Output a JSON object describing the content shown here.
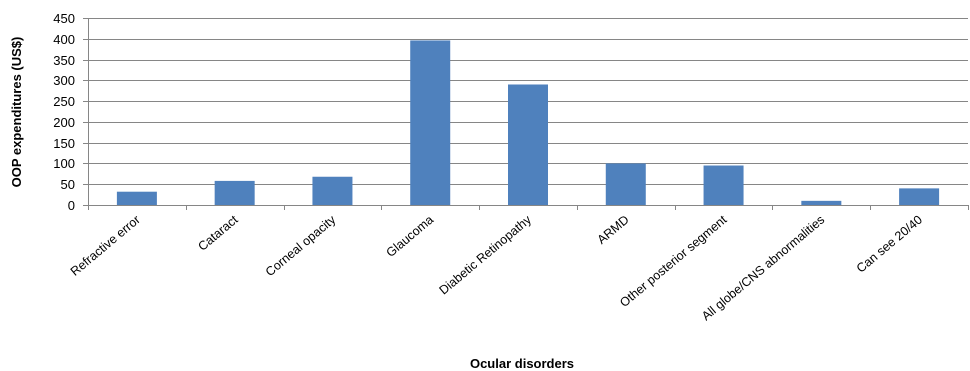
{
  "chart_data": {
    "type": "bar",
    "xlabel": "Ocular disorders",
    "ylabel": "OOP expenditures (US$)",
    "ylim": [
      0,
      450
    ],
    "yticks": [
      0,
      50,
      100,
      150,
      200,
      250,
      300,
      350,
      400,
      450
    ],
    "grid": true,
    "bar_color": "#4F81BD",
    "categories": [
      "Refractive error",
      "Cataract",
      "Corneal opacity",
      "Glaucoma",
      "Diabetic Retinopathy",
      "ARMD",
      "Other posterior segment",
      "All globe/CNS abnormalities",
      "Can see 20/40"
    ],
    "values": [
      32,
      58,
      68,
      396,
      290,
      100,
      95,
      10,
      40
    ]
  }
}
